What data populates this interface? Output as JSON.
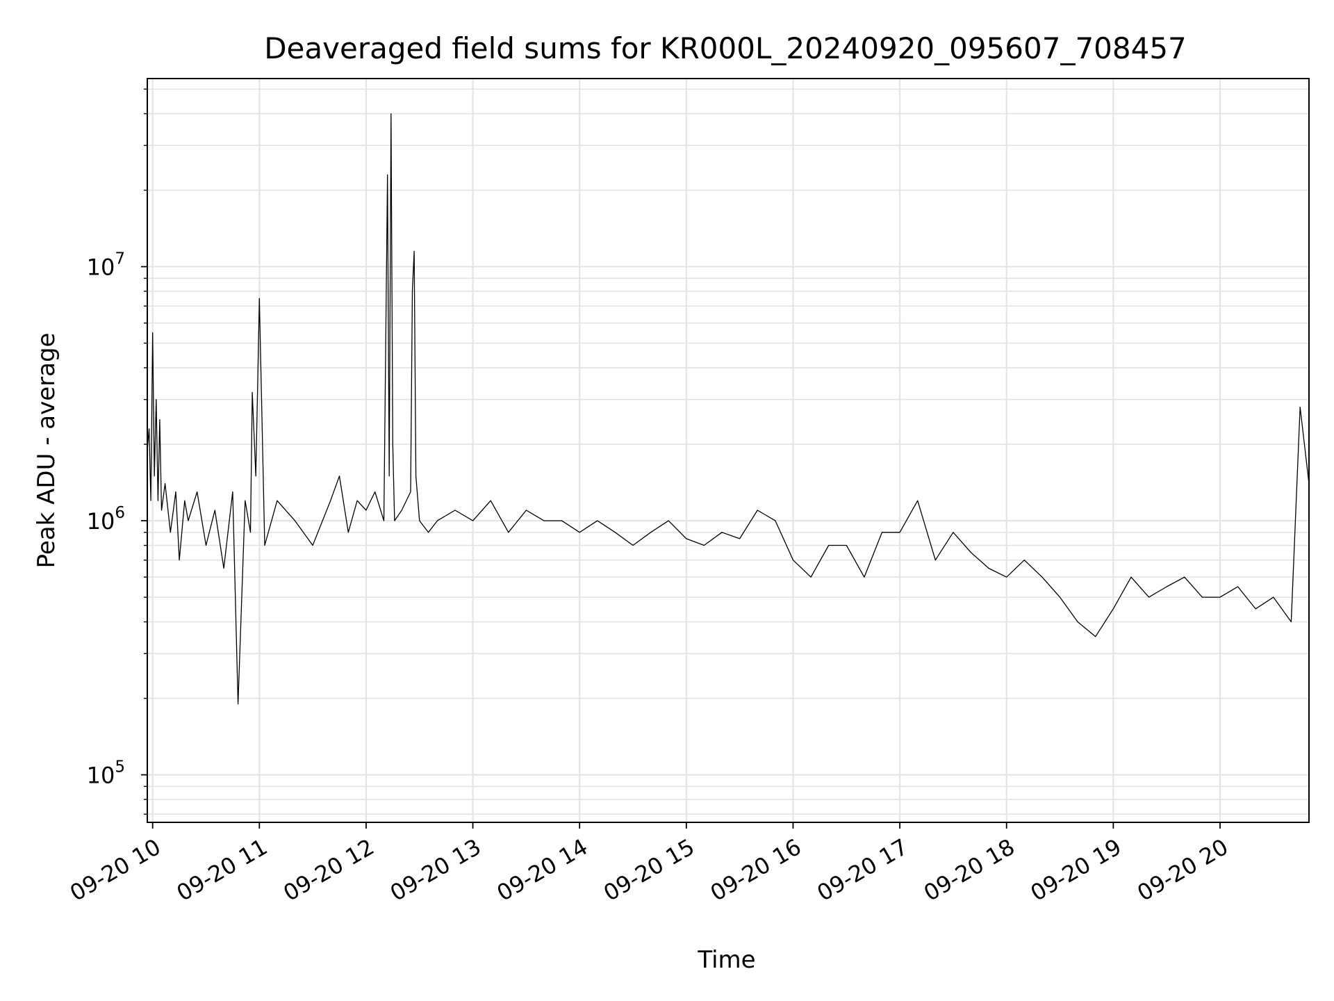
{
  "chart_data": {
    "type": "line",
    "title": "Deaveraged field sums for KR000L_20240920_095607_708457",
    "xlabel": "Time",
    "ylabel": "Peak ADU - average",
    "y_scale": "log",
    "ylim": [
      65000,
      55000000
    ],
    "xlim": [
      "2024-09-20 09:57",
      "2024-09-20 20:50"
    ],
    "grid": true,
    "legend": "none",
    "line_color": "#000000",
    "x_ticks": [
      "09-20 10",
      "09-20 11",
      "09-20 12",
      "09-20 13",
      "09-20 14",
      "09-20 15",
      "09-20 16",
      "09-20 17",
      "09-20 18",
      "09-20 19",
      "09-20 20"
    ],
    "x_tick_times": [
      "2024-09-20 10:00",
      "2024-09-20 11:00",
      "2024-09-20 12:00",
      "2024-09-20 13:00",
      "2024-09-20 14:00",
      "2024-09-20 15:00",
      "2024-09-20 16:00",
      "2024-09-20 17:00",
      "2024-09-20 18:00",
      "2024-09-20 19:00",
      "2024-09-20 20:00"
    ],
    "y_ticks": [
      {
        "value": 100000,
        "base": "10",
        "exp": "5"
      },
      {
        "value": 1000000,
        "base": "10",
        "exp": "6"
      },
      {
        "value": 10000000,
        "base": "10",
        "exp": "7"
      }
    ],
    "series": [
      {
        "x": [
          "2024-09-20 09:57",
          "2024-09-20 09:58",
          "2024-09-20 09:59",
          "2024-09-20 10:00",
          "2024-09-20 10:01",
          "2024-09-20 10:02",
          "2024-09-20 10:03",
          "2024-09-20 10:04",
          "2024-09-20 10:05",
          "2024-09-20 10:07",
          "2024-09-20 10:10",
          "2024-09-20 10:13",
          "2024-09-20 10:15",
          "2024-09-20 10:18",
          "2024-09-20 10:20",
          "2024-09-20 10:25",
          "2024-09-20 10:30",
          "2024-09-20 10:35",
          "2024-09-20 10:40",
          "2024-09-20 10:45",
          "2024-09-20 10:48",
          "2024-09-20 10:52",
          "2024-09-20 10:55",
          "2024-09-20 10:56",
          "2024-09-20 10:58",
          "2024-09-20 11:00",
          "2024-09-20 11:03",
          "2024-09-20 11:10",
          "2024-09-20 11:20",
          "2024-09-20 11:30",
          "2024-09-20 11:40",
          "2024-09-20 11:45",
          "2024-09-20 11:50",
          "2024-09-20 11:55",
          "2024-09-20 12:00",
          "2024-09-20 12:05",
          "2024-09-20 12:10",
          "2024-09-20 12:12",
          "2024-09-20 12:13",
          "2024-09-20 12:14",
          "2024-09-20 12:15",
          "2024-09-20 12:16",
          "2024-09-20 12:20",
          "2024-09-20 12:25",
          "2024-09-20 12:26",
          "2024-09-20 12:27",
          "2024-09-20 12:28",
          "2024-09-20 12:30",
          "2024-09-20 12:35",
          "2024-09-20 12:40",
          "2024-09-20 12:50",
          "2024-09-20 13:00",
          "2024-09-20 13:10",
          "2024-09-20 13:20",
          "2024-09-20 13:30",
          "2024-09-20 13:40",
          "2024-09-20 13:50",
          "2024-09-20 14:00",
          "2024-09-20 14:10",
          "2024-09-20 14:20",
          "2024-09-20 14:30",
          "2024-09-20 14:40",
          "2024-09-20 14:50",
          "2024-09-20 15:00",
          "2024-09-20 15:10",
          "2024-09-20 15:20",
          "2024-09-20 15:30",
          "2024-09-20 15:40",
          "2024-09-20 15:50",
          "2024-09-20 16:00",
          "2024-09-20 16:10",
          "2024-09-20 16:20",
          "2024-09-20 16:30",
          "2024-09-20 16:40",
          "2024-09-20 16:50",
          "2024-09-20 17:00",
          "2024-09-20 17:10",
          "2024-09-20 17:20",
          "2024-09-20 17:30",
          "2024-09-20 17:40",
          "2024-09-20 17:50",
          "2024-09-20 18:00",
          "2024-09-20 18:10",
          "2024-09-20 18:20",
          "2024-09-20 18:30",
          "2024-09-20 18:40",
          "2024-09-20 18:50",
          "2024-09-20 19:00",
          "2024-09-20 19:10",
          "2024-09-20 19:20",
          "2024-09-20 19:30",
          "2024-09-20 19:40",
          "2024-09-20 19:50",
          "2024-09-20 20:00",
          "2024-09-20 20:10",
          "2024-09-20 20:20",
          "2024-09-20 20:30",
          "2024-09-20 20:40",
          "2024-09-20 20:45",
          "2024-09-20 20:50"
        ],
        "values": [
          1900000,
          2300000,
          1200000,
          5500000,
          1500000,
          3000000,
          1200000,
          2500000,
          1100000,
          1400000,
          900000,
          1300000,
          700000,
          1200000,
          1000000,
          1300000,
          800000,
          1100000,
          650000,
          1300000,
          190000,
          1200000,
          900000,
          3200000,
          1500000,
          7500000,
          800000,
          1200000,
          1000000,
          800000,
          1200000,
          1500000,
          900000,
          1200000,
          1100000,
          1300000,
          1000000,
          23000000,
          1500000,
          40000000,
          2000000,
          1000000,
          1100000,
          1300000,
          8000000,
          11500000,
          1500000,
          1000000,
          900000,
          1000000,
          1100000,
          1000000,
          1200000,
          900000,
          1100000,
          1000000,
          1000000,
          900000,
          1000000,
          900000,
          800000,
          900000,
          1000000,
          850000,
          800000,
          900000,
          850000,
          1100000,
          1000000,
          700000,
          600000,
          800000,
          800000,
          600000,
          900000,
          900000,
          1200000,
          700000,
          900000,
          750000,
          650000,
          600000,
          700000,
          600000,
          500000,
          400000,
          350000,
          450000,
          600000,
          500000,
          550000,
          600000,
          500000,
          500000,
          550000,
          450000,
          500000,
          400000,
          2800000,
          1400000
        ]
      }
    ]
  }
}
